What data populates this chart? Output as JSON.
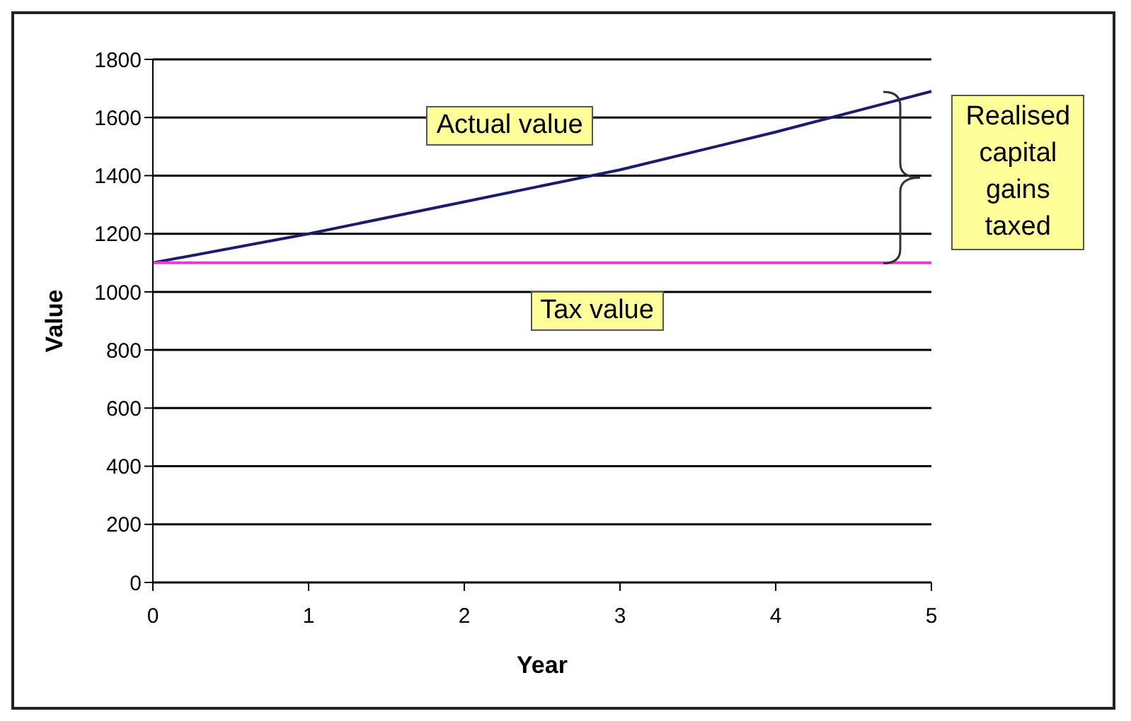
{
  "chart_data": {
    "type": "line",
    "xlabel": "Year",
    "ylabel": "Value",
    "categories": [
      "0",
      "1",
      "2",
      "3",
      "4",
      "5"
    ],
    "series": [
      {
        "name": "Actual value",
        "color": "#1c1c6e",
        "values": [
          1100,
          1200,
          1310,
          1420,
          1550,
          1690
        ]
      },
      {
        "name": "Tax value",
        "color": "#e03ce0",
        "values": [
          1100,
          1100,
          1100,
          1100,
          1100,
          1100
        ]
      }
    ],
    "ylim": [
      0,
      1800
    ],
    "yticks": [
      0,
      200,
      400,
      600,
      800,
      1000,
      1200,
      1400,
      1600,
      1800
    ],
    "grid": "y",
    "marker": "none",
    "line_style": "solid",
    "annotations": [
      "Realised capital gains taxed"
    ]
  }
}
